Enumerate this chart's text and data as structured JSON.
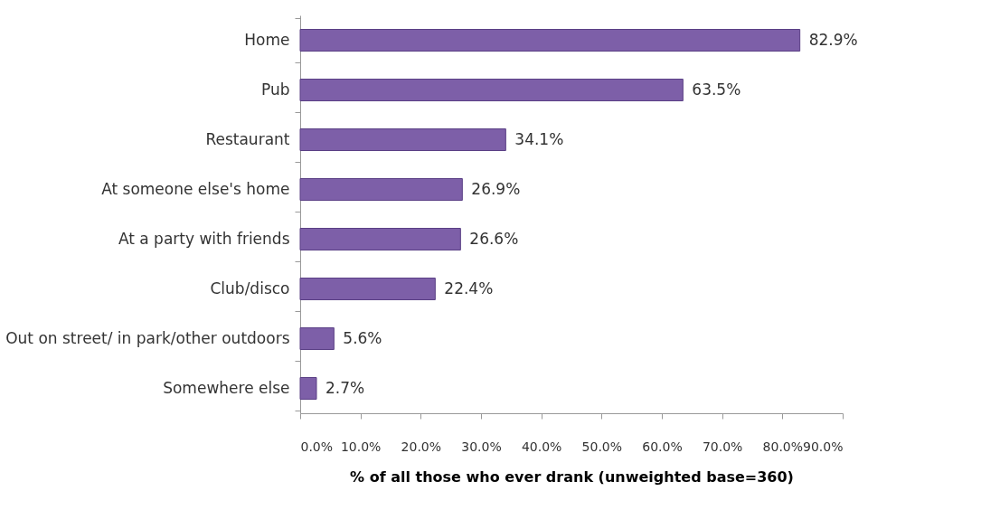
{
  "chart_data": {
    "type": "bar",
    "orientation": "horizontal",
    "xlabel": "% of all those who ever drank (unweighted base=360)",
    "categories": [
      "Home",
      "Pub",
      "Restaurant",
      "At someone else's home",
      "At a party with friends",
      "Club/disco",
      "Out on street/ in park/other outdoors",
      "Somewhere else"
    ],
    "values": [
      82.9,
      63.5,
      34.1,
      26.9,
      26.6,
      22.4,
      5.6,
      2.7
    ],
    "value_labels": [
      "82.9%",
      "63.5%",
      "34.1%",
      "26.9%",
      "26.6%",
      "22.4%",
      "5.6%",
      "2.7%"
    ],
    "color": "#7d5fa8",
    "xlim": [
      0,
      90
    ],
    "xticks": [
      {
        "value": 0,
        "label": "0.0%"
      },
      {
        "value": 10,
        "label": "10.0%"
      },
      {
        "value": 20,
        "label": "20.0%"
      },
      {
        "value": 30,
        "label": "30.0%"
      },
      {
        "value": 40,
        "label": "40.0%"
      },
      {
        "value": 50,
        "label": "50.0%"
      },
      {
        "value": 60,
        "label": "60.0%"
      },
      {
        "value": 70,
        "label": "70.0%"
      },
      {
        "value": 80,
        "label": "80.0%"
      },
      {
        "value": 90,
        "label": "90.0%"
      }
    ],
    "grid": false
  }
}
